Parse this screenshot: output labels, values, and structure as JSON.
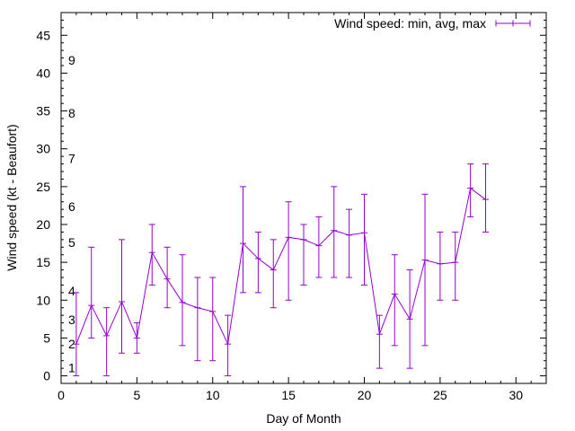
{
  "chart_data": {
    "type": "line",
    "title": "",
    "xlabel": "Day of Month",
    "ylabel": "Wind speed (kt - Beaufort)",
    "xlim": [
      0,
      32
    ],
    "ylim": [
      -1,
      48
    ],
    "x_ticks": [
      0,
      5,
      10,
      15,
      20,
      25,
      30
    ],
    "y_ticks": [
      0,
      5,
      10,
      15,
      20,
      25,
      30,
      35,
      40,
      45
    ],
    "grid": false,
    "legend_position": "top-right",
    "series": [
      {
        "name": "Wind speed: min, avg, max",
        "color": "#9400d3",
        "x": [
          1,
          2,
          3,
          4,
          5,
          6,
          7,
          8,
          9,
          10,
          11,
          12,
          13,
          14,
          15,
          16,
          17,
          18,
          19,
          20,
          21,
          22,
          23,
          24,
          25,
          26,
          27,
          28
        ],
        "avg": [
          4.2,
          9.3,
          5.3,
          9.8,
          5.0,
          16.3,
          12.8,
          9.7,
          9.0,
          8.5,
          4.2,
          17.5,
          15.5,
          14.0,
          18.3,
          18.0,
          17.2,
          19.2,
          18.6,
          18.9,
          5.5,
          10.8,
          7.5,
          15.3,
          14.8,
          15.0,
          24.8,
          23.3
        ],
        "min": [
          0,
          5,
          0,
          3,
          3,
          12,
          9,
          4,
          2,
          2,
          0,
          11,
          11,
          9,
          10,
          12,
          13,
          13,
          13,
          12,
          1,
          4,
          1,
          4,
          10,
          10,
          21,
          19
        ],
        "max": [
          11,
          17,
          9,
          18,
          7,
          20,
          17,
          16,
          13,
          13,
          8,
          25,
          19,
          18,
          23,
          20,
          21,
          25,
          22,
          24,
          8,
          16,
          14,
          24,
          19,
          19,
          28,
          28
        ]
      }
    ],
    "annotations": [
      {
        "text": "1",
        "y": 1.1
      },
      {
        "text": "2",
        "y": 4.2
      },
      {
        "text": "3",
        "y": 7.4
      },
      {
        "text": "4",
        "y": 11.2
      },
      {
        "text": "5",
        "y": 17.6
      },
      {
        "text": "6",
        "y": 22.4
      },
      {
        "text": "7",
        "y": 28.7
      },
      {
        "text": "8",
        "y": 34.7
      },
      {
        "text": "9",
        "y": 41.7
      }
    ]
  }
}
